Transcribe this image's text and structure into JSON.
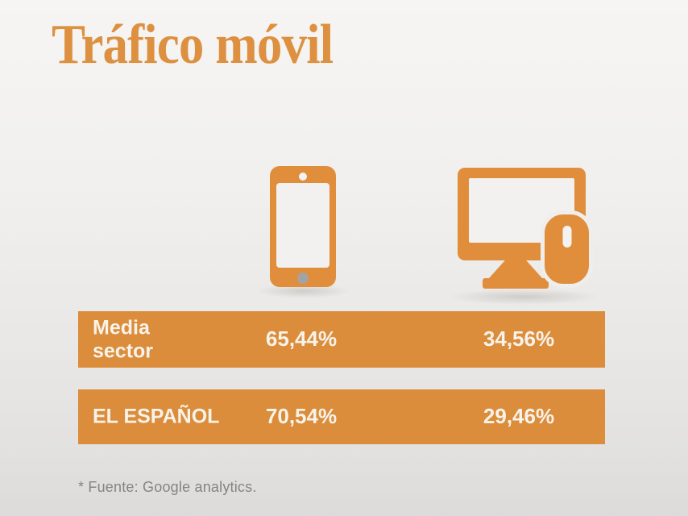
{
  "title": "Tráfico móvil",
  "table": {
    "rows": [
      {
        "label": "Media sector",
        "mobile": "65,44%",
        "desktop": "34,56%"
      },
      {
        "label": "EL ESPAÑOL",
        "mobile": "70,54%",
        "desktop": "29,46%"
      }
    ]
  },
  "icons": {
    "mobile": "smartphone-icon",
    "desktop": "desktop-computer-with-mouse-icon"
  },
  "footer": {
    "source_note": "* Fuente: Google analytics."
  },
  "colors": {
    "accent_orange": "#db8d3b",
    "icon_orange": "#e08e3c",
    "title_orange": "#dd9040",
    "row_text": "#f8f3ea",
    "footer_text": "#85847f",
    "home_button_gray": "#a3a3a3",
    "background_top": "#f6f5f3",
    "background_bottom": "#dcdbd9"
  },
  "chart_data": {
    "type": "table",
    "title": "Tráfico móvil",
    "columns": [
      "entity",
      "mobile_traffic_pct",
      "desktop_traffic_pct"
    ],
    "rows": [
      {
        "entity": "Media sector",
        "mobile_traffic_pct": 65.44,
        "desktop_traffic_pct": 34.56
      },
      {
        "entity": "EL ESPAÑOL",
        "mobile_traffic_pct": 70.54,
        "desktop_traffic_pct": 29.46
      }
    ],
    "value_format": "percent with comma decimal separator",
    "source": "* Fuente: Google analytics.",
    "legend_position": "none",
    "notes": "Column 1 values shown under a smartphone icon, column 2 values under a desktop+mouse icon"
  }
}
